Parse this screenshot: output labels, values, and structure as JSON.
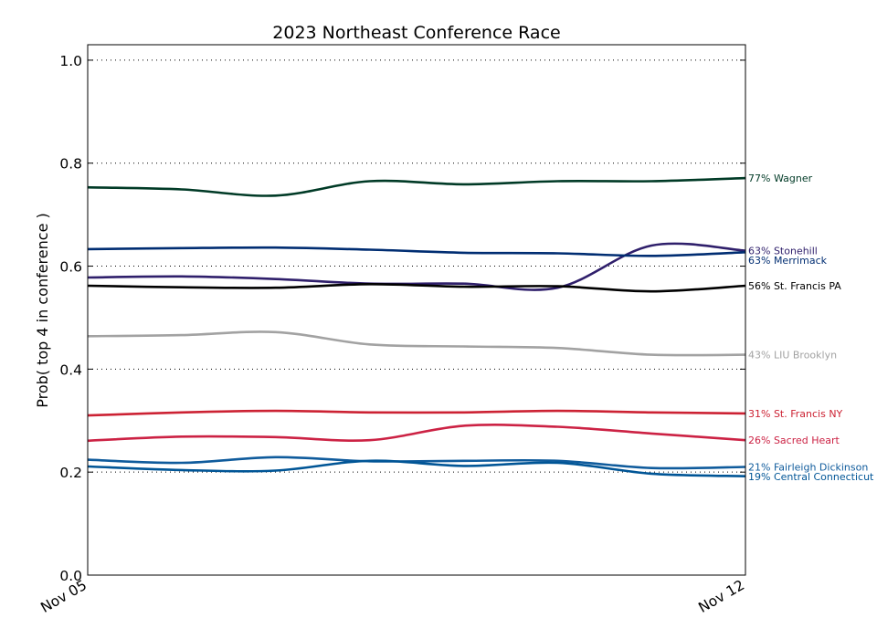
{
  "chart_data": {
    "type": "line",
    "title": "2023 Northeast Conference Race",
    "ylabel": "Prob( top 4 in conference )",
    "xlabel": "",
    "x": [
      "2023-11-05",
      "2023-11-06",
      "2023-11-07",
      "2023-11-08",
      "2023-11-09",
      "2023-11-10",
      "2023-11-11",
      "2023-11-12"
    ],
    "xticks": [
      {
        "value": "2023-11-05",
        "label": "Nov 05"
      },
      {
        "value": "2023-11-12",
        "label": "Nov 12"
      }
    ],
    "ylim": [
      0.0,
      1.03
    ],
    "yticks": [
      0.0,
      0.2,
      0.4,
      0.6,
      0.8,
      1.0
    ],
    "ytick_labels": [
      "0.0",
      "0.2",
      "0.4",
      "0.6",
      "0.8",
      "1.0"
    ],
    "grid": true,
    "series": [
      {
        "name": "Wagner",
        "end_label": "77% Wagner",
        "color": "#003a26",
        "values": [
          0.753,
          0.749,
          0.737,
          0.765,
          0.759,
          0.765,
          0.765,
          0.771
        ]
      },
      {
        "name": "Stonehill",
        "end_label": "63% Stonehill",
        "color": "#2f1f6b",
        "values": [
          0.578,
          0.58,
          0.575,
          0.566,
          0.566,
          0.558,
          0.64,
          0.63
        ]
      },
      {
        "name": "Merrimack",
        "end_label": "63% Merrimack",
        "color": "#002d72",
        "values": [
          0.633,
          0.635,
          0.636,
          0.632,
          0.626,
          0.625,
          0.62,
          0.627
        ]
      },
      {
        "name": "St. Francis PA",
        "end_label": "56% St. Francis PA",
        "color": "#000000",
        "values": [
          0.562,
          0.559,
          0.558,
          0.565,
          0.56,
          0.561,
          0.551,
          0.562
        ]
      },
      {
        "name": "LIU Brooklyn",
        "end_label": "43% LIU Brooklyn",
        "color": "#a2a2a2",
        "values": [
          0.464,
          0.466,
          0.472,
          0.448,
          0.444,
          0.441,
          0.428,
          0.428
        ]
      },
      {
        "name": "St. Francis NY",
        "end_label": "31% St. Francis NY",
        "color": "#cc2233",
        "values": [
          0.31,
          0.316,
          0.319,
          0.316,
          0.316,
          0.319,
          0.316,
          0.314
        ]
      },
      {
        "name": "Sacred Heart",
        "end_label": "26% Sacred Heart",
        "color": "#cc2244",
        "values": [
          0.261,
          0.269,
          0.268,
          0.262,
          0.29,
          0.288,
          0.275,
          0.262
        ]
      },
      {
        "name": "Fairleigh Dickinson",
        "end_label": "21% Fairleigh Dickinson",
        "color": "#0f5b9c",
        "values": [
          0.224,
          0.218,
          0.229,
          0.221,
          0.222,
          0.222,
          0.208,
          0.21
        ]
      },
      {
        "name": "Central Connecticut",
        "end_label": "19% Central Connecticut",
        "color": "#005596",
        "values": [
          0.211,
          0.204,
          0.203,
          0.222,
          0.212,
          0.218,
          0.197,
          0.192
        ]
      }
    ]
  }
}
